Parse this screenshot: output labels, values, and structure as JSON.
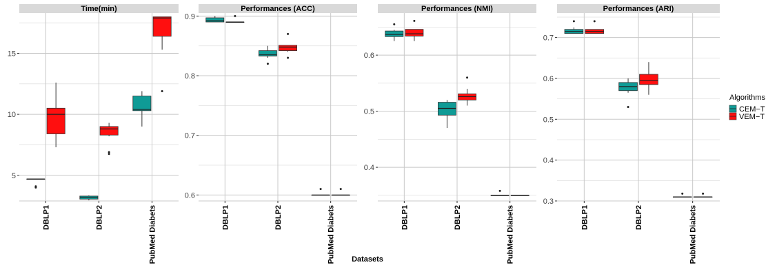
{
  "figure": {
    "xlabel": "Datasets",
    "legend_title": "Algorithms",
    "legend_placement": "right",
    "series": [
      {
        "name": "CEM−T",
        "color": "#0f9b96"
      },
      {
        "name": "VEM−T",
        "color": "#ff0f0f"
      }
    ],
    "panel_background": "#ffffff",
    "strip_background": "#d9d9d9",
    "grid": true
  },
  "chart_data": [
    {
      "type": "boxplot",
      "title": "Time(min)",
      "categories": [
        "DBLP1",
        "DBLP2",
        "PubMed Diabets"
      ],
      "ylim": [
        2.9,
        18.3
      ],
      "yticks": [
        5,
        10,
        15
      ],
      "boxes": [
        [
          {
            "min": 4.7,
            "q1": 4.7,
            "median": 4.7,
            "q3": 4.7,
            "max": 4.7,
            "outliers": [
              4.1,
              4.0
            ]
          },
          {
            "min": 7.3,
            "q1": 8.4,
            "median": 10.0,
            "q3": 10.5,
            "max": 12.6,
            "outliers": []
          }
        ],
        [
          {
            "min": 2.95,
            "q1": 3.05,
            "median": 3.2,
            "q3": 3.3,
            "max": 3.35,
            "outliers": []
          },
          {
            "min": 8.2,
            "q1": 8.3,
            "median": 8.8,
            "q3": 9.0,
            "max": 9.3,
            "outliers": [
              6.9,
              6.75
            ]
          }
        ],
        [
          {
            "min": 9.0,
            "q1": 10.3,
            "median": 10.4,
            "q3": 11.5,
            "max": 11.9,
            "outliers": []
          },
          {
            "min": 15.3,
            "q1": 16.4,
            "median": 17.9,
            "q3": 18.0,
            "max": 18.0,
            "outliers": [
              11.9
            ]
          }
        ]
      ]
    },
    {
      "type": "boxplot",
      "title": "Performances (ACC)",
      "categories": [
        "DBLP1",
        "DBLP2",
        "PubMed Diabets"
      ],
      "ylim": [
        0.59,
        0.905
      ],
      "yticks": [
        0.6,
        0.7,
        0.8,
        0.9
      ],
      "boxes": [
        [
          {
            "min": 0.89,
            "q1": 0.89,
            "median": 0.892,
            "q3": 0.897,
            "max": 0.9,
            "outliers": []
          },
          {
            "min": 0.89,
            "q1": 0.89,
            "median": 0.89,
            "q3": 0.89,
            "max": 0.89,
            "outliers": [
              0.9
            ]
          }
        ],
        [
          {
            "min": 0.83,
            "q1": 0.833,
            "median": 0.835,
            "q3": 0.842,
            "max": 0.85,
            "outliers": [
              0.82
            ]
          },
          {
            "min": 0.84,
            "q1": 0.842,
            "median": 0.848,
            "q3": 0.851,
            "max": 0.851,
            "outliers": [
              0.87,
              0.83
            ]
          }
        ],
        [
          {
            "min": 0.6,
            "q1": 0.6,
            "median": 0.6,
            "q3": 0.6,
            "max": 0.6,
            "outliers": [
              0.61
            ]
          },
          {
            "min": 0.6,
            "q1": 0.6,
            "median": 0.6,
            "q3": 0.6,
            "max": 0.6,
            "outliers": [
              0.61
            ]
          }
        ]
      ]
    },
    {
      "type": "boxplot",
      "title": "Performances (NMI)",
      "categories": [
        "DBLP1",
        "DBLP2",
        "PubMed Diabets"
      ],
      "ylim": [
        0.34,
        0.675
      ],
      "yticks": [
        0.4,
        0.5,
        0.6
      ],
      "boxes": [
        [
          {
            "min": 0.625,
            "q1": 0.633,
            "median": 0.637,
            "q3": 0.643,
            "max": 0.645,
            "outliers": [
              0.655
            ]
          },
          {
            "min": 0.625,
            "q1": 0.634,
            "median": 0.638,
            "q3": 0.646,
            "max": 0.646,
            "outliers": [
              0.661
            ]
          }
        ],
        [
          {
            "min": 0.47,
            "q1": 0.493,
            "median": 0.505,
            "q3": 0.516,
            "max": 0.52,
            "outliers": []
          },
          {
            "min": 0.51,
            "q1": 0.52,
            "median": 0.526,
            "q3": 0.531,
            "max": 0.54,
            "outliers": [
              0.56
            ]
          }
        ],
        [
          {
            "min": 0.35,
            "q1": 0.35,
            "median": 0.35,
            "q3": 0.35,
            "max": 0.35,
            "outliers": [
              0.358
            ]
          },
          {
            "min": 0.35,
            "q1": 0.35,
            "median": 0.35,
            "q3": 0.35,
            "max": 0.35,
            "outliers": []
          }
        ]
      ]
    },
    {
      "type": "boxplot",
      "title": "Performances (ARI)",
      "categories": [
        "DBLP1",
        "DBLP2",
        "PubMed Diabets"
      ],
      "ylim": [
        0.3,
        0.76
      ],
      "yticks": [
        0.3,
        0.4,
        0.5,
        0.6,
        0.7
      ],
      "boxes": [
        [
          {
            "min": 0.71,
            "q1": 0.71,
            "median": 0.715,
            "q3": 0.72,
            "max": 0.725,
            "outliers": [
              0.74
            ]
          },
          {
            "min": 0.71,
            "q1": 0.71,
            "median": 0.715,
            "q3": 0.72,
            "max": 0.72,
            "outliers": [
              0.74
            ]
          }
        ],
        [
          {
            "min": 0.565,
            "q1": 0.57,
            "median": 0.58,
            "q3": 0.59,
            "max": 0.6,
            "outliers": [
              0.53
            ]
          },
          {
            "min": 0.56,
            "q1": 0.585,
            "median": 0.595,
            "q3": 0.61,
            "max": 0.64,
            "outliers": []
          }
        ],
        [
          {
            "min": 0.31,
            "q1": 0.31,
            "median": 0.31,
            "q3": 0.31,
            "max": 0.31,
            "outliers": [
              0.318
            ]
          },
          {
            "min": 0.31,
            "q1": 0.31,
            "median": 0.31,
            "q3": 0.31,
            "max": 0.31,
            "outliers": [
              0.318
            ]
          }
        ]
      ]
    }
  ]
}
